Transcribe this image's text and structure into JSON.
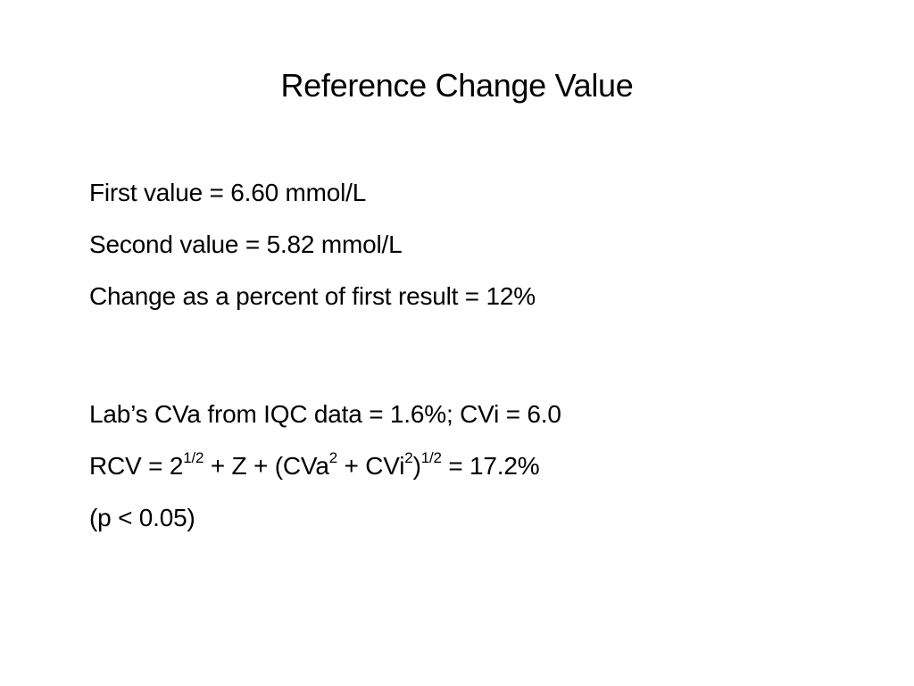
{
  "slide": {
    "title": "Reference Change Value",
    "lines": [
      "First value = 6.60 mmol/L",
      "Second value = 5.82 mmol/L",
      "Change as a percent of first result = 12%",
      "Lab’s CVa from IQC data = 1.6%; CVi = 6.0"
    ],
    "rcv_formula": {
      "p1": "RCV = 2",
      "sup1": "1/2",
      "p2": " + Z + (CVa",
      "sup2": "2",
      "p3": " + CVi",
      "sup3": "2",
      "p4": ")",
      "sup4": "1/2",
      "p5": " = 17.2%"
    },
    "p_value": "(p < 0.05)"
  }
}
